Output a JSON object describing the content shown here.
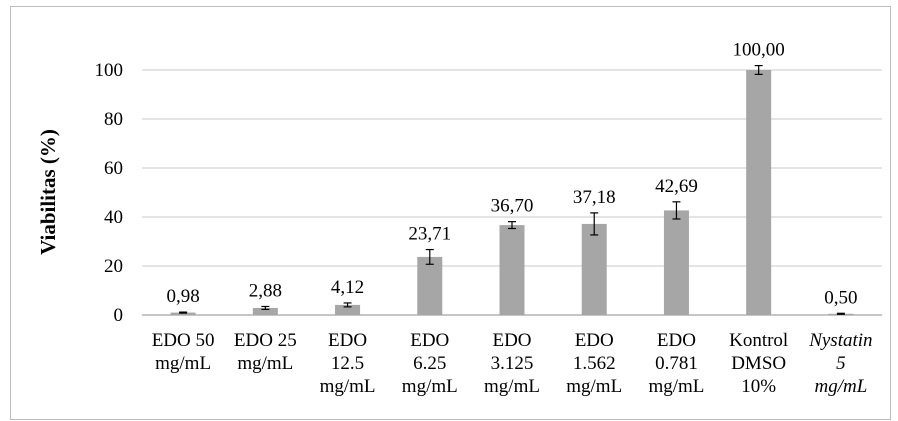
{
  "chart_data": {
    "type": "bar",
    "title": "",
    "xlabel": "",
    "ylabel": "Viabilitas (%)",
    "ylim": [
      0,
      100
    ],
    "yticks": [
      0,
      20,
      40,
      60,
      80,
      100
    ],
    "grid": true,
    "bar_color": "#a6a6a6",
    "categories": [
      {
        "lines": [
          "EDO 50",
          "mg/mL"
        ],
        "italic": false
      },
      {
        "lines": [
          "EDO 25",
          "mg/mL"
        ],
        "italic": false
      },
      {
        "lines": [
          "EDO",
          "12.5",
          "mg/mL"
        ],
        "italic": false
      },
      {
        "lines": [
          "EDO",
          "6.25",
          "mg/mL"
        ],
        "italic": false
      },
      {
        "lines": [
          "EDO",
          "3.125",
          "mg/mL"
        ],
        "italic": false
      },
      {
        "lines": [
          "EDO",
          "1.562",
          "mg/mL"
        ],
        "italic": false
      },
      {
        "lines": [
          "EDO",
          "0.781",
          "mg/mL"
        ],
        "italic": false
      },
      {
        "lines": [
          "Kontrol",
          "DMSO",
          "10%"
        ],
        "italic": false
      },
      {
        "lines": [
          "Nystatin",
          "5",
          "mg/mL"
        ],
        "italic": true
      }
    ],
    "values": [
      0.98,
      2.88,
      4.12,
      23.71,
      36.7,
      37.18,
      42.69,
      100.0,
      0.5
    ],
    "data_labels": [
      "0,98",
      "2,88",
      "4,12",
      "23,71",
      "36,70",
      "37,18",
      "42,69",
      "100,00",
      "0,50"
    ],
    "error": [
      0.2,
      0.6,
      0.8,
      3.0,
      1.4,
      4.5,
      3.5,
      1.8,
      0.2
    ]
  }
}
